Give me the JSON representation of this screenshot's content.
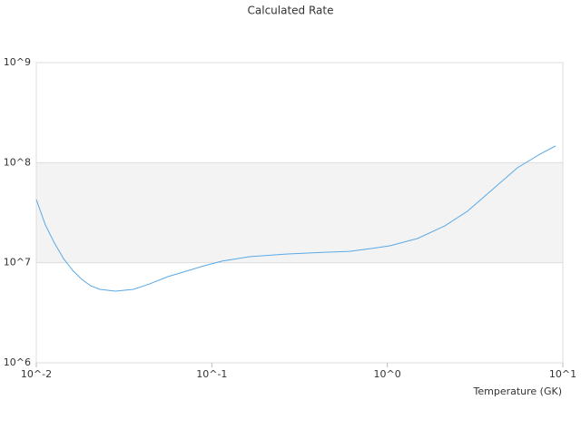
{
  "chart_data": {
    "type": "line",
    "title": "Calculated Rate",
    "x_label": "Temperature (GK)",
    "xscale": "log",
    "yscale": "log",
    "grid": true,
    "alternate_bands": true,
    "xlim": [
      0.01,
      10
    ],
    "ylim": [
      1000000,
      1000000000
    ],
    "xticks": [
      {
        "value": 0.01,
        "label": "10^-2"
      },
      {
        "value": 0.1,
        "label": "10^-1"
      },
      {
        "value": 1,
        "label": "10^0"
      },
      {
        "value": 10,
        "label": "10^1"
      }
    ],
    "yticks": [
      {
        "value": 1000000,
        "label": "10^6"
      },
      {
        "value": 10000000,
        "label": "10^7"
      },
      {
        "value": 100000000,
        "label": "10^8"
      },
      {
        "value": 1000000000,
        "label": "10^9"
      }
    ],
    "x": [
      0.01,
      0.01126,
      0.01269,
      0.01429,
      0.0161,
      0.01815,
      0.0204,
      0.023,
      0.0282,
      0.0358,
      0.0443,
      0.0562,
      0.0714,
      0.0905,
      0.115,
      0.164,
      0.264,
      0.426,
      0.609,
      0.82,
      1.04,
      1.49,
      2.13,
      2.86,
      3.86,
      5.51,
      7.43,
      9.1
    ],
    "series": [
      {
        "color": "#5aa9e6",
        "values": [
          42800000,
          23900000,
          15700000,
          11000000,
          8400000,
          6820000,
          5890000,
          5420000,
          5200000,
          5420000,
          6150000,
          7260000,
          8230000,
          9330000,
          10400000,
          11500000,
          12200000,
          12700000,
          13000000,
          13900000,
          14800000,
          17500000,
          23400000,
          32700000,
          51700000,
          88900000,
          122000000,
          147000000
        ]
      }
    ]
  }
}
